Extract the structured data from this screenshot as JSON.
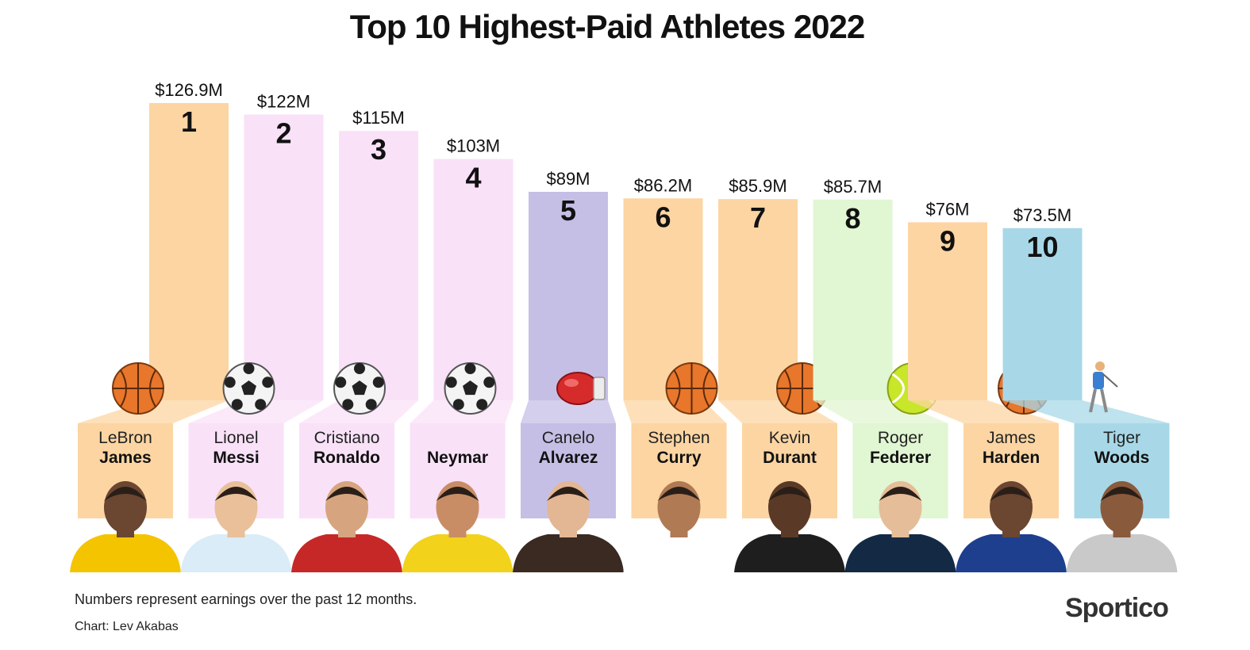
{
  "title": "Top 10 Highest-Paid Athletes 2022",
  "footnote": "Numbers represent earnings over the past 12 months.",
  "credit": "Chart: Lev Akabas",
  "brand": "Sportico",
  "colors": {
    "basketball": "#fcd5a3",
    "soccer": "#f9e1f8",
    "boxing": "#c5bfe6",
    "tennis": "#e1f6d2",
    "golf": "#a8d8e8"
  },
  "chart_data": {
    "type": "bar",
    "title": "Top 10 Highest-Paid Athletes 2022",
    "unit": "$M",
    "categories": [
      "LeBron James",
      "Lionel Messi",
      "Cristiano Ronaldo",
      "Neymar",
      "Canelo Alvarez",
      "Stephen Curry",
      "Kevin Durant",
      "Roger Federer",
      "James Harden",
      "Tiger Woods"
    ],
    "values": [
      126.9,
      122,
      115,
      103,
      89,
      86.2,
      85.9,
      85.7,
      76,
      73.5
    ],
    "value_labels": [
      "$126.9M",
      "$122M",
      "$115M",
      "$103M",
      "$89M",
      "$86.2M",
      "$85.9M",
      "$85.7M",
      "$76M",
      "$73.5M"
    ],
    "ranks": [
      "1",
      "2",
      "3",
      "4",
      "5",
      "6",
      "7",
      "8",
      "9",
      "10"
    ],
    "first_names": [
      "LeBron",
      "Lionel",
      "Cristiano",
      "",
      "Canelo",
      "Stephen",
      "Kevin",
      "Roger",
      "James",
      "Tiger"
    ],
    "last_names": [
      "James",
      "Messi",
      "Ronaldo",
      "Neymar",
      "Alvarez",
      "Curry",
      "Durant",
      "Federer",
      "Harden",
      "Woods"
    ],
    "sports": [
      "basketball",
      "soccer",
      "soccer",
      "soccer",
      "boxing",
      "basketball",
      "basketball",
      "tennis",
      "basketball",
      "golf"
    ],
    "icons": [
      "basketball-icon",
      "soccer-ball-icon",
      "soccer-ball-icon",
      "soccer-ball-icon",
      "boxing-glove-icon",
      "basketball-icon",
      "basketball-icon",
      "tennis-ball-icon",
      "basketball-icon",
      "golfer-icon"
    ],
    "xlabel": "",
    "ylabel": ""
  }
}
